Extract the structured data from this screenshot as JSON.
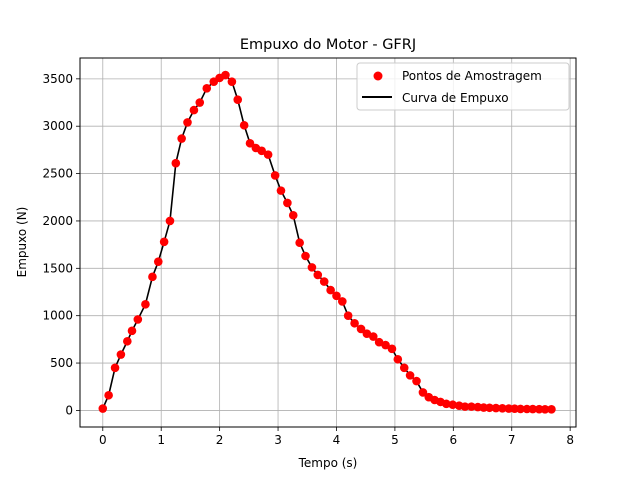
{
  "chart_data": {
    "type": "line",
    "title": "Empuxo do Motor - GFRJ",
    "xlabel": "Tempo (s)",
    "ylabel": "Empuxo (N)",
    "xlim": [
      -0.39,
      8.1
    ],
    "ylim": [
      -175,
      3720
    ],
    "xticks": [
      0,
      1,
      2,
      3,
      4,
      5,
      6,
      7,
      8
    ],
    "yticks": [
      0,
      500,
      1000,
      1500,
      2000,
      2500,
      3000,
      3500
    ],
    "grid": true,
    "legend_position": "top-right",
    "colors": {
      "points": "#ff0000",
      "curve": "#000000",
      "grid": "#b0b0b0"
    },
    "legend": [
      "Pontos de Amostragem",
      "Curva de Empuxo"
    ],
    "series": [
      {
        "name": "Pontos de Amostragem",
        "kind": "scatter",
        "x": [
          0.0,
          0.1,
          0.21,
          0.31,
          0.42,
          0.5,
          0.6,
          0.73,
          0.85,
          0.95,
          1.05,
          1.15,
          1.25,
          1.35,
          1.45,
          1.56,
          1.66,
          1.78,
          1.9,
          2.0,
          2.1,
          2.21,
          2.31,
          2.42,
          2.52,
          2.62,
          2.72,
          2.83,
          2.95,
          3.05,
          3.16,
          3.26,
          3.37,
          3.47,
          3.58,
          3.68,
          3.79,
          3.9,
          4.0,
          4.1,
          4.2,
          4.31,
          4.42,
          4.52,
          4.63,
          4.73,
          4.84,
          4.95,
          5.05,
          5.16,
          5.26,
          5.37,
          5.48,
          5.58,
          5.68,
          5.78,
          5.88,
          5.99,
          6.1,
          6.2,
          6.31,
          6.42,
          6.52,
          6.62,
          6.73,
          6.84,
          6.95,
          7.05,
          7.15,
          7.26,
          7.36,
          7.47,
          7.57,
          7.68
        ],
        "y": [
          20,
          160,
          450,
          590,
          730,
          840,
          960,
          1120,
          1410,
          1570,
          1780,
          2000,
          2610,
          2870,
          3040,
          3170,
          3250,
          3400,
          3470,
          3510,
          3540,
          3470,
          3280,
          3010,
          2820,
          2770,
          2740,
          2700,
          2480,
          2320,
          2190,
          2060,
          1770,
          1630,
          1510,
          1430,
          1360,
          1270,
          1210,
          1150,
          1000,
          920,
          860,
          810,
          780,
          720,
          690,
          650,
          540,
          450,
          370,
          310,
          190,
          140,
          110,
          90,
          70,
          60,
          50,
          40,
          40,
          35,
          30,
          28,
          25,
          22,
          20,
          18,
          16,
          15,
          14,
          13,
          12,
          12
        ]
      },
      {
        "name": "Curva de Empuxo",
        "kind": "line",
        "x": [
          0.0,
          0.1,
          0.21,
          0.31,
          0.42,
          0.5,
          0.6,
          0.73,
          0.85,
          0.95,
          1.05,
          1.15,
          1.25,
          1.35,
          1.45,
          1.56,
          1.66,
          1.78,
          1.9,
          2.0,
          2.1,
          2.21,
          2.31,
          2.42,
          2.52,
          2.62,
          2.72,
          2.83,
          2.95,
          3.05,
          3.16,
          3.26,
          3.37,
          3.47,
          3.58,
          3.68,
          3.79,
          3.9,
          4.0,
          4.1,
          4.2,
          4.31,
          4.42,
          4.52,
          4.63,
          4.73,
          4.84,
          4.95,
          5.05,
          5.16,
          5.26,
          5.37,
          5.48,
          5.58,
          5.68,
          5.78,
          5.88,
          5.99,
          6.1,
          6.2,
          6.31,
          6.42,
          6.52,
          6.62,
          6.73,
          6.84,
          6.95,
          7.05,
          7.15,
          7.26,
          7.36,
          7.47,
          7.57,
          7.68
        ],
        "y": [
          20,
          160,
          450,
          590,
          730,
          840,
          960,
          1120,
          1410,
          1570,
          1780,
          2000,
          2610,
          2870,
          3040,
          3170,
          3250,
          3400,
          3470,
          3510,
          3540,
          3470,
          3280,
          3010,
          2820,
          2770,
          2740,
          2700,
          2480,
          2320,
          2190,
          2060,
          1770,
          1630,
          1510,
          1430,
          1360,
          1270,
          1210,
          1150,
          1000,
          920,
          860,
          810,
          780,
          720,
          690,
          650,
          540,
          450,
          370,
          310,
          190,
          140,
          110,
          90,
          70,
          60,
          50,
          40,
          40,
          35,
          30,
          28,
          25,
          22,
          20,
          18,
          16,
          15,
          14,
          13,
          12,
          12
        ]
      }
    ]
  }
}
